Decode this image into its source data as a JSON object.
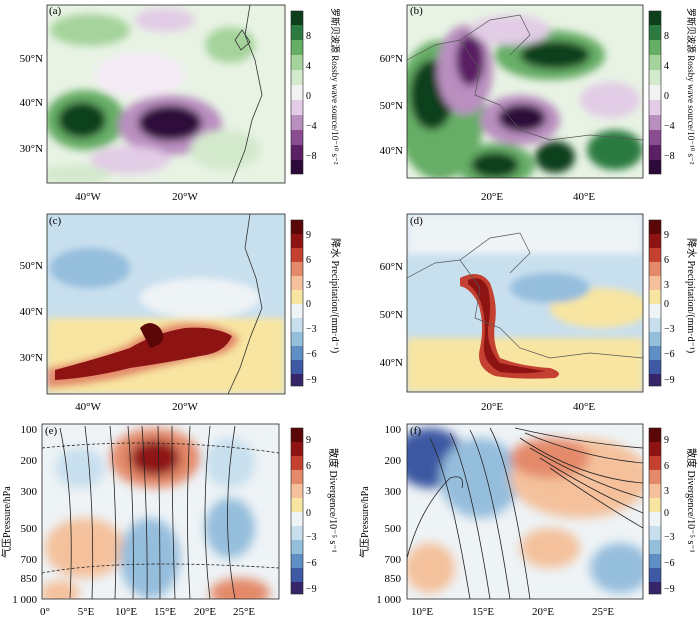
{
  "panels": [
    {
      "id": "a",
      "label": "(a)",
      "region": "north-atlantic",
      "type": "map-contour",
      "field": "rossby",
      "yticks": [
        "50°N",
        "40°N",
        "30°N"
      ],
      "xticks": [
        "40°W",
        "20°W"
      ],
      "colorbar": {
        "title": "罗斯贝波源 Rossby wave source/10⁻¹⁰ s⁻²",
        "ticks": [
          "8",
          "4",
          "0",
          "−4",
          "−8"
        ]
      }
    },
    {
      "id": "b",
      "label": "(b)",
      "region": "europe",
      "type": "map-contour",
      "field": "rossby",
      "yticks": [
        "60°N",
        "50°N",
        "40°N"
      ],
      "xticks": [
        "20°E",
        "40°E"
      ],
      "colorbar": {
        "title": "罗斯贝波源 Rossby wave source/10⁻¹⁰ s⁻²",
        "ticks": [
          "8",
          "4",
          "0",
          "−4",
          "−8"
        ]
      }
    },
    {
      "id": "c",
      "label": "(c)",
      "region": "north-atlantic",
      "type": "map-contour",
      "field": "precip",
      "yticks": [
        "50°N",
        "40°N",
        "30°N"
      ],
      "xticks": [
        "40°W",
        "20°W"
      ],
      "colorbar": {
        "title": "降水 Precipitation/(mm·d⁻¹)",
        "ticks": [
          "9",
          "6",
          "3",
          "0",
          "−3",
          "−6",
          "−9"
        ]
      }
    },
    {
      "id": "d",
      "label": "(d)",
      "region": "europe",
      "type": "map-contour",
      "field": "precip",
      "yticks": [
        "60°N",
        "50°N",
        "40°N"
      ],
      "xticks": [
        "20°E",
        "40°E"
      ],
      "colorbar": {
        "title": "降水 Precipitation/(mm·d⁻¹)",
        "ticks": [
          "9",
          "6",
          "3",
          "0",
          "−3",
          "−6",
          "−9"
        ]
      }
    },
    {
      "id": "e",
      "label": "(e)",
      "type": "cross-section",
      "field": "divergence",
      "yticks": [
        "100",
        "200",
        "300",
        "500",
        "700",
        "850",
        "1 000"
      ],
      "xticks": [
        "0°",
        "5°E",
        "10°E",
        "15°E",
        "20°E",
        "25°E"
      ],
      "ylabel": "气压Pressure/hPa",
      "colorbar": {
        "title": "散度 Divergence/10⁻⁵ s⁻¹",
        "ticks": [
          "9",
          "6",
          "3",
          "0",
          "−3",
          "−6",
          "−9"
        ]
      }
    },
    {
      "id": "f",
      "label": "(f)",
      "type": "cross-section",
      "field": "divergence",
      "yticks": [
        "100",
        "200",
        "300",
        "500",
        "700",
        "850",
        "1 000"
      ],
      "xticks": [
        "10°E",
        "15°E",
        "20°E",
        "25°E"
      ],
      "ylabel": "气压Pressure/hPa",
      "colorbar": {
        "title": "散度 Divergence/10⁻⁵ s⁻¹",
        "ticks": [
          "9",
          "6",
          "3",
          "0",
          "−3",
          "−6",
          "−9"
        ]
      }
    }
  ],
  "colors": {
    "rossby": [
      "#2d0a3a",
      "#5a1f64",
      "#8a4d92",
      "#b98fc0",
      "#e2cce6",
      "#f2f2f2",
      "#d3e9cc",
      "#a5d39b",
      "#66ad66",
      "#2c7a3f",
      "#0d3f1c"
    ],
    "diverge": [
      "#36256a",
      "#3d59a3",
      "#5f8ec4",
      "#95bedd",
      "#c8dfee",
      "#eef3f6",
      "#f8e5a1",
      "#f4c19c",
      "#e48a6b",
      "#c44030",
      "#8e1414",
      "#5c0707"
    ]
  }
}
